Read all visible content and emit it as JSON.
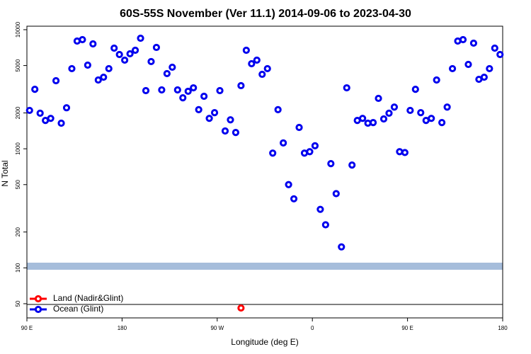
{
  "chart_data": {
    "type": "scatter",
    "title": "60S-55S November (Ver 11.1)   2014-09-06 to 2023-04-30",
    "xlabel": "Longitude (deg E)",
    "ylabel": "N Total",
    "xlim": [
      90,
      540
    ],
    "xticks": [
      {
        "value": 90,
        "label": "90 E"
      },
      180,
      {
        "value": 270,
        "label": "90 W"
      },
      {
        "value": 360,
        "label": "0"
      },
      {
        "value": 450,
        "label": "90 E"
      },
      {
        "value": 540,
        "label": "180"
      }
    ],
    "ylim": [
      38,
      10700
    ],
    "ylog": true,
    "yticks": [
      50,
      100,
      200,
      500,
      1000,
      2000,
      5000,
      10000
    ],
    "legend": "lower left",
    "series": [
      {
        "name": "Land (Nadir&Glint)",
        "color": "#ff0000",
        "x": [
          292.5
        ],
        "values": [
          46
        ]
      },
      {
        "name": "Ocean (Glint)",
        "color": "#0000ee",
        "x": [
          92.5,
          97.5,
          102.5,
          107.5,
          112.5,
          117.5,
          122.5,
          127.5,
          132.5,
          137.5,
          142.5,
          147.5,
          152.5,
          157.5,
          162.5,
          167.5,
          172.5,
          177.5,
          182.5,
          187.5,
          192.5,
          197.5,
          202.5,
          207.5,
          212.5,
          217.5,
          222.5,
          227.5,
          232.5,
          237.5,
          242.5,
          247.5,
          252.5,
          257.5,
          262.5,
          267.5,
          272.5,
          277.5,
          282.5,
          287.5,
          292.5,
          297.5,
          302.5,
          307.5,
          312.5,
          317.5,
          322.5,
          327.5,
          332.5,
          337.5,
          342.5,
          347.5,
          352.5,
          357.5,
          362.5,
          367.5,
          372.5,
          377.5,
          382.5,
          387.5,
          392.5,
          397.5,
          402.5,
          407.5,
          412.5,
          417.5,
          422.5,
          427.5,
          432.5,
          437.5,
          442.5,
          447.5,
          452.5,
          457.5,
          462.5,
          467.5,
          472.5,
          477.5,
          482.5,
          487.5,
          492.5,
          497.5,
          502.5,
          507.5,
          512.5,
          517.5,
          522.5,
          527.5,
          532.5,
          537.5
        ],
        "values": [
          2100,
          3160,
          1990,
          1730,
          1800,
          3730,
          1640,
          2210,
          4710,
          8030,
          8250,
          5040,
          7600,
          3780,
          3990,
          4710,
          7000,
          6190,
          5550,
          6280,
          6720,
          8480,
          3080,
          5400,
          7100,
          3120,
          4280,
          4840,
          3120,
          2680,
          3040,
          3250,
          2130,
          2760,
          1800,
          2010,
          3080,
          1410,
          1750,
          1370,
          3390,
          6720,
          5180,
          5550,
          4220,
          4710,
          920,
          2130,
          1120,
          500,
          380,
          1510,
          920,
          945,
          1060,
          310,
          230,
          750,
          420,
          150,
          3250,
          730,
          1730,
          1800,
          1640,
          1660,
          2650,
          1780,
          1990,
          2240,
          945,
          930,
          2100,
          3160,
          2010,
          1730,
          1800,
          3780,
          1660,
          2240,
          4710,
          8030,
          8250,
          5110,
          7710,
          3830,
          3990,
          4710,
          7000,
          6190
        ]
      }
    ]
  }
}
